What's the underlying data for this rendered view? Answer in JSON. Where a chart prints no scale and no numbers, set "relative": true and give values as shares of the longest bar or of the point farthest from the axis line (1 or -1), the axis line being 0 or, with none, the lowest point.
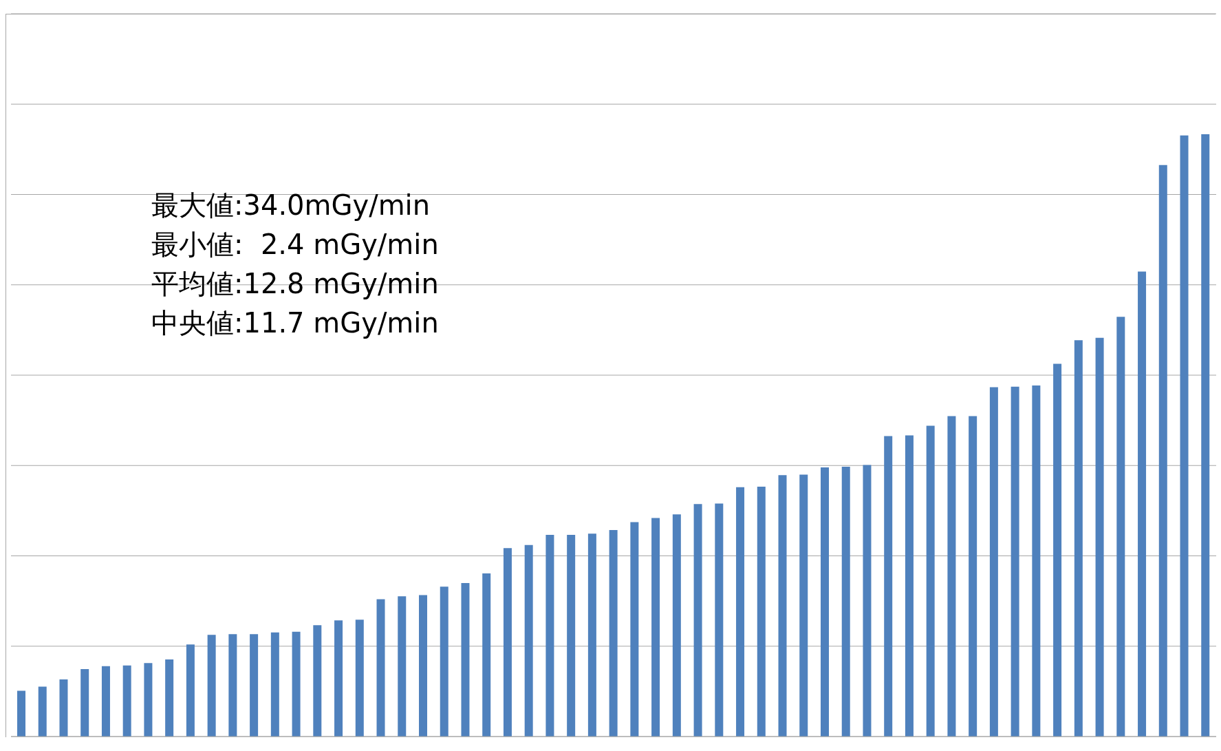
{
  "chart_data": {
    "type": "bar",
    "relative": true,
    "grid": "y",
    "color": "#4f81bd",
    "categories": [
      null,
      null,
      null,
      null,
      null,
      null,
      null,
      null,
      null,
      null,
      null,
      null,
      null,
      null,
      null,
      null,
      null,
      null,
      null,
      null,
      null,
      null,
      null,
      null,
      null,
      null,
      null,
      null,
      null,
      null,
      null,
      null,
      null,
      null,
      null,
      null,
      null,
      null,
      null,
      null,
      null,
      null,
      null,
      null,
      null,
      null,
      null,
      null,
      null,
      null,
      null,
      null,
      null,
      null,
      null,
      null,
      null
    ],
    "values": [
      0.076,
      0.083,
      0.095,
      0.112,
      0.117,
      0.118,
      0.122,
      0.128,
      0.153,
      0.169,
      0.17,
      0.17,
      0.173,
      0.174,
      0.185,
      0.193,
      0.194,
      0.228,
      0.233,
      0.235,
      0.249,
      0.255,
      0.271,
      0.313,
      0.318,
      0.335,
      0.335,
      0.337,
      0.343,
      0.356,
      0.363,
      0.369,
      0.386,
      0.387,
      0.414,
      0.415,
      0.434,
      0.435,
      0.447,
      0.448,
      0.451,
      0.499,
      0.5,
      0.516,
      0.532,
      0.532,
      0.58,
      0.581,
      0.583,
      0.619,
      0.658,
      0.662,
      0.697,
      0.772,
      0.949,
      0.998,
      1
    ],
    "annotations": [
      "最大値:34.0mGy/min",
      "最小値:  2.4 mGy/min",
      "平均値:12.8 mGy/min",
      "中央値:11.7 mGy/min"
    ]
  }
}
